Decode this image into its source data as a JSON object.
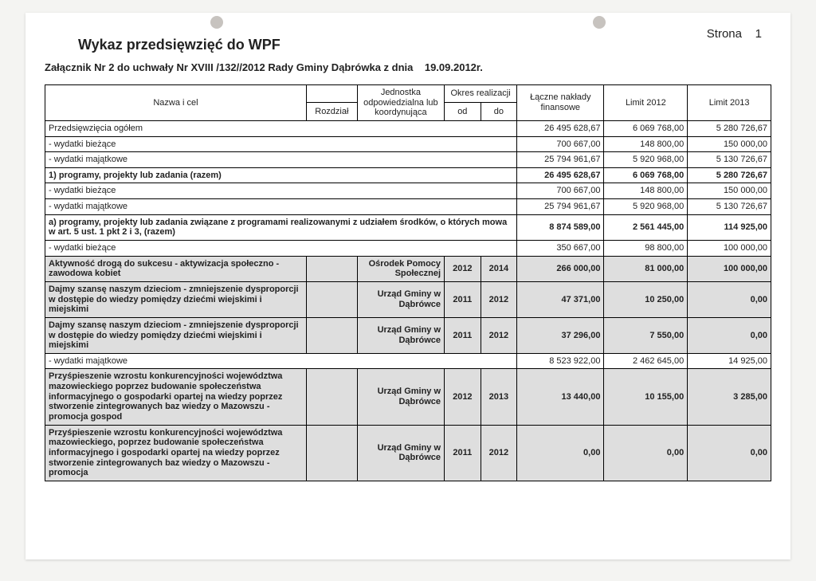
{
  "strona_label": "Strona",
  "page_number": "1",
  "title": "Wykaz przedsięwzięć do WPF",
  "subtitle_prefix": "Załącznik Nr 2 do uchwały Nr XVIII /132//2012 Rady Gminy Dąbrówka z dnia",
  "subtitle_date": "19.09.2012r.",
  "headers": {
    "nazwa": "Nazwa i cel",
    "rozdzial": "Rozdział",
    "jednostka_top": "Jednostka odpowiedzialna lub koordynująca",
    "okres": "Okres realizacji",
    "od": "od",
    "do": "do",
    "naklady": "Łączne nakłady finansowe",
    "limit2012": "Limit 2012",
    "limit2013": "Limit 2013"
  },
  "rows": [
    {
      "cls": "",
      "label": "Przedsięwzięcia ogółem",
      "naklady": "26 495 628,67",
      "l12": "6 069 768,00",
      "l13": "5 280 726,67",
      "span": true
    },
    {
      "cls": "",
      "label": "- wydatki bieżące",
      "naklady": "700 667,00",
      "l12": "148 800,00",
      "l13": "150 000,00",
      "span": true
    },
    {
      "cls": "",
      "label": "- wydatki majątkowe",
      "naklady": "25 794 961,67",
      "l12": "5 920 968,00",
      "l13": "5 130 726,67",
      "span": true
    },
    {
      "cls": "bold",
      "label": "1) programy, projekty lub zadania (razem)",
      "naklady": "26 495 628,67",
      "l12": "6 069 768,00",
      "l13": "5 280 726,67",
      "span": true
    },
    {
      "cls": "",
      "label": "- wydatki bieżące",
      "naklady": "700 667,00",
      "l12": "148 800,00",
      "l13": "150 000,00",
      "span": true
    },
    {
      "cls": "",
      "label": "- wydatki majątkowe",
      "naklady": "25 794 961,67",
      "l12": "5 920 968,00",
      "l13": "5 130 726,67",
      "span": true
    },
    {
      "cls": "bold",
      "label": "a) programy, projekty lub zadania związane z programami realizowanymi z udziałem środków, o których mowa w art. 5 ust. 1 pkt 2 i 3, (razem)",
      "naklady": "8 874 589,00",
      "l12": "2 561 445,00",
      "l13": "114 925,00",
      "span": true
    },
    {
      "cls": "",
      "label": "- wydatki bieżące",
      "naklady": "350 667,00",
      "l12": "98 800,00",
      "l13": "100 000,00",
      "span": true
    }
  ],
  "detail_rows": [
    {
      "label": "Aktywność drogą do sukcesu - aktywizacja społeczno - zawodowa kobiet",
      "roz": "",
      "unit": "Ośrodek Pomocy Społecznej",
      "od": "2012",
      "do": "2014",
      "n": "266 000,00",
      "l12": "81 000,00",
      "l13": "100 000,00"
    },
    {
      "label": "Dajmy szansę naszym dzieciom - zmniejszenie dysproporcji w dostępie do wiedzy pomiędzy dziećmi wiejskimi i miejskimi",
      "roz": "",
      "unit": "Urząd Gminy w Dąbrówce",
      "od": "2011",
      "do": "2012",
      "n": "47 371,00",
      "l12": "10 250,00",
      "l13": "0,00"
    },
    {
      "label": "Dajmy szansę naszym dzieciom - zmniejszenie dysproporcji w dostępie do wiedzy pomiędzy dziećmi wiejskimi i miejskimi",
      "roz": "",
      "unit": "Urząd Gminy w Dąbrówce",
      "od": "2011",
      "do": "2012",
      "n": "37 296,00",
      "l12": "7 550,00",
      "l13": "0,00"
    }
  ],
  "after_detail": {
    "label": "- wydatki majątkowe",
    "n": "8 523 922,00",
    "l12": "2 462 645,00",
    "l13": "14 925,00"
  },
  "detail_rows2": [
    {
      "label": "Przyśpieszenie wzrostu konkurencyjności województwa mazowieckiego poprzez budowanie społeczeństwa informacyjnego o gospodarki opartej na wiedzy poprzez stworzenie zintegrowanych baz wiedzy o Mazowszu - promocja gospod",
      "roz": "",
      "unit": "Urząd Gminy w Dąbrówce",
      "od": "2012",
      "do": "2013",
      "n": "13 440,00",
      "l12": "10 155,00",
      "l13": "3 285,00"
    },
    {
      "label": "Przyśpieszenie wzrostu konkurencyjności województwa mazowieckiego, poprzez budowanie społeczeństwa informacyjnego i gospodarki opartej na wiedzy poprzez stworzenie zintegrowanych baz wiedzy o Mazowszu  - promocja",
      "roz": "",
      "unit": "Urząd Gminy w Dąbrówce",
      "od": "2011",
      "do": "2012",
      "n": "0,00",
      "l12": "0,00",
      "l13": "0,00"
    }
  ]
}
